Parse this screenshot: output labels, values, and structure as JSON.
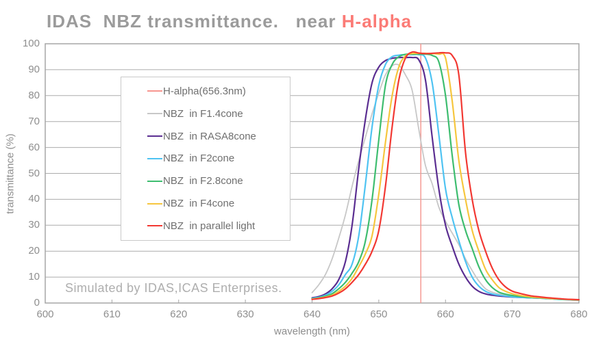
{
  "title": {
    "text": "IDAS  NBZ transmittance.   near ",
    "accent": "H-alpha"
  },
  "footer_note": "Simulated by IDAS,ICAS Enterprises.",
  "colors": {
    "title_gray": "#9b9b9b",
    "title_accent": "#fb7b76",
    "grid": "#ababab",
    "axis": "#a5a5a5",
    "tick_label": "#8e8e8e"
  },
  "chart_data": {
    "type": "line",
    "title": "IDAS NBZ transmittance. near H-alpha",
    "xlabel": "wavelength (nm)",
    "ylabel": "transmittance (%)",
    "xlim": [
      600,
      680
    ],
    "ylim": [
      0,
      100
    ],
    "x_ticks": [
      600,
      610,
      620,
      630,
      640,
      650,
      660,
      670,
      680
    ],
    "y_ticks": [
      0,
      10,
      20,
      30,
      40,
      50,
      60,
      70,
      80,
      90,
      100
    ],
    "grid": "horizontal",
    "legend_position": "upper-left",
    "marker": {
      "label": "H-alpha(656.3nm)",
      "wavelength": 656.3,
      "color": "#f59a93"
    },
    "x_start": 640,
    "x_step": 1,
    "legend_entries": [
      {
        "label": "H-alpha(656.3nm)",
        "color": "#f7958f"
      },
      {
        "label": "NBZ  in F1.4cone",
        "color": "#c7c7c7"
      },
      {
        "label": "NBZ  in RASA8cone",
        "color": "#5a2d91"
      },
      {
        "label": "NBZ  in F2cone",
        "color": "#4ec3f2"
      },
      {
        "label": "NBZ  in F2.8cone",
        "color": "#3dbd6f"
      },
      {
        "label": "NBZ  in F4cone",
        "color": "#f6c63e"
      },
      {
        "label": "NBZ  in parallel light",
        "color": "#f23832"
      }
    ],
    "series": [
      {
        "name": "NBZ  in F1.4cone",
        "color": "#c7c7c7",
        "width": 1.8,
        "values": [
          4,
          7,
          11,
          17,
          25,
          34,
          45,
          55,
          64,
          73,
          81,
          88,
          91.5,
          91.8,
          88,
          82,
          67,
          53,
          46,
          37,
          31.5,
          27,
          22.5,
          17,
          12.5,
          8.5,
          5.5,
          4.2,
          3.5,
          3,
          2.5,
          2.3,
          2.1,
          2,
          1.9,
          1.8,
          1.6,
          1.5,
          1.4,
          1.3,
          1.2
        ]
      },
      {
        "name": "NBZ  in RASA8cone",
        "color": "#5a2d91",
        "width": 2.2,
        "values": [
          2,
          2.5,
          3.5,
          5.5,
          9,
          16,
          30,
          52,
          71,
          85,
          91,
          93.5,
          94.4,
          94.7,
          94.7,
          94.7,
          93.8,
          86,
          64,
          44,
          30,
          22,
          15,
          10,
          6.5,
          4.5,
          3.5,
          3,
          2.7,
          2.5,
          2.3,
          2.2,
          2.1,
          2,
          1.9,
          1.8,
          1.6,
          1.5,
          1.4,
          1.2,
          1.1
        ]
      },
      {
        "name": "NBZ  in F2cone",
        "color": "#4ec3f2",
        "width": 2.2,
        "values": [
          1.8,
          2.2,
          3,
          4.5,
          7,
          11,
          15,
          26,
          46,
          68,
          84,
          92,
          95,
          95.6,
          95.8,
          95.8,
          95.8,
          94.5,
          85,
          65,
          44,
          33,
          24,
          16,
          10,
          6.5,
          4.5,
          3.5,
          3,
          2.7,
          2.4,
          2.2,
          2.1,
          2,
          1.9,
          1.7,
          1.6,
          1.4,
          1.3,
          1.2,
          1.1
        ]
      },
      {
        "name": "NBZ  in F2.8cone",
        "color": "#3dbd6f",
        "width": 2.2,
        "values": [
          1.6,
          2,
          2.6,
          3.6,
          5.5,
          8,
          11.5,
          16,
          24,
          40,
          63,
          84,
          92,
          95,
          95.9,
          96,
          96,
          96,
          95.5,
          93,
          80,
          57,
          38,
          28,
          21,
          14,
          9,
          6,
          4.2,
          3.4,
          2.9,
          2.6,
          2.3,
          2.1,
          2,
          1.8,
          1.7,
          1.5,
          1.4,
          1.3,
          1.2
        ]
      },
      {
        "name": "NBZ  in F4cone",
        "color": "#f6c63e",
        "width": 2.2,
        "values": [
          1.5,
          1.8,
          2.3,
          3,
          4.5,
          6.5,
          9.5,
          14,
          19,
          26,
          42,
          62,
          80,
          91,
          95.3,
          96.2,
          96.3,
          96.3,
          96.2,
          96,
          94.5,
          78,
          55,
          40,
          28,
          20,
          13,
          9,
          6,
          4.5,
          3.6,
          3,
          2.6,
          2.3,
          2.1,
          1.9,
          1.7,
          1.6,
          1.4,
          1.3,
          1.2
        ]
      },
      {
        "name": "NBZ  in parallel light",
        "color": "#f23832",
        "width": 2.2,
        "values": [
          1.4,
          1.7,
          2.1,
          2.7,
          3.8,
          5.5,
          8,
          11,
          15,
          20,
          28,
          45,
          68,
          86,
          94.5,
          96.8,
          96.4,
          96.2,
          96.3,
          96.5,
          96.5,
          95.5,
          88,
          58,
          40,
          28,
          20,
          13.5,
          9,
          6.2,
          4.6,
          3.8,
          3.2,
          2.7,
          2.4,
          2.1,
          1.9,
          1.7,
          1.5,
          1.4,
          1.3
        ]
      }
    ]
  }
}
